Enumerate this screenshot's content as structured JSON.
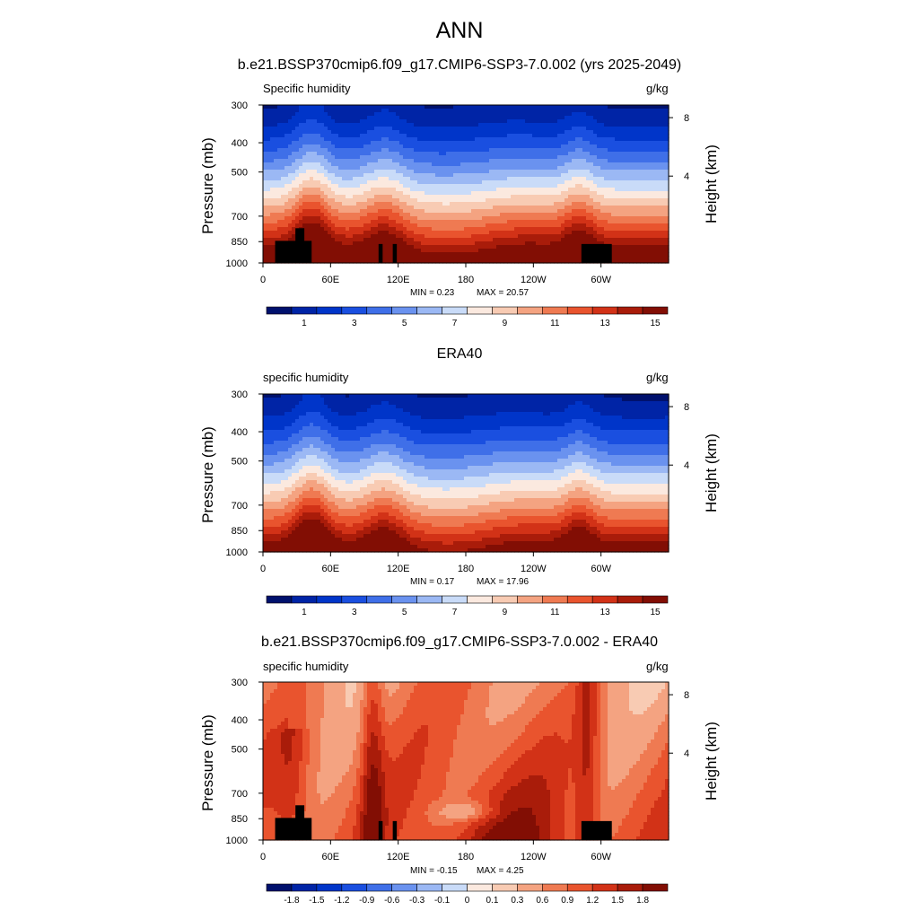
{
  "title": "ANN",
  "chart_data": [
    {
      "type": "heatmap",
      "title": "b.e21.BSSP370cmip6.f09_g17.CMIP6-SSP3-7.0.002 (yrs 2025-2049)",
      "variable": "Specific humidity",
      "units": "g/kg",
      "ylabel": "Pressure (mb)",
      "ylabel_right": "Height (km)",
      "xticks": [
        "0",
        "60E",
        "120E",
        "180",
        "120W",
        "60W"
      ],
      "yticks": [
        "300",
        "400",
        "500",
        "700",
        "850",
        "1000"
      ],
      "yticks_right": [
        "8",
        "4"
      ],
      "min_label": "MIN =   0.23",
      "max_label": "MAX =  20.57",
      "colorbar_labels": [
        "1",
        "3",
        "5",
        "7",
        "9",
        "11",
        "13",
        "15"
      ],
      "colormap": [
        "#00116d",
        "#0024a6",
        "#0035c9",
        "#1a4fe0",
        "#3f6fe8",
        "#6a92ef",
        "#9bb8f4",
        "#c9dbf8",
        "#fbe9df",
        "#f8cbb3",
        "#f4a381",
        "#ef7a52",
        "#e9542e",
        "#d23217",
        "#a91c0a",
        "#820e04"
      ],
      "min": 0.23,
      "max": 20.57
    },
    {
      "type": "heatmap",
      "title": "ERA40",
      "variable": "specific humidity",
      "units": "g/kg",
      "ylabel": "Pressure (mb)",
      "ylabel_right": "Height (km)",
      "xticks": [
        "0",
        "60E",
        "120E",
        "180",
        "120W",
        "60W"
      ],
      "yticks": [
        "300",
        "400",
        "500",
        "700",
        "850",
        "1000"
      ],
      "yticks_right": [
        "8",
        "4"
      ],
      "min_label": "MIN =   0.17",
      "max_label": "MAX =  17.96",
      "colorbar_labels": [
        "1",
        "3",
        "5",
        "7",
        "9",
        "11",
        "13",
        "15"
      ],
      "colormap": [
        "#00116d",
        "#0024a6",
        "#0035c9",
        "#1a4fe0",
        "#3f6fe8",
        "#6a92ef",
        "#9bb8f4",
        "#c9dbf8",
        "#fbe9df",
        "#f8cbb3",
        "#f4a381",
        "#ef7a52",
        "#e9542e",
        "#d23217",
        "#a91c0a",
        "#820e04"
      ],
      "min": 0.17,
      "max": 17.96
    },
    {
      "type": "heatmap",
      "title": "b.e21.BSSP370cmip6.f09_g17.CMIP6-SSP3-7.0.002 - ERA40",
      "variable": "specific humidity",
      "units": "g/kg",
      "ylabel": "Pressure (mb)",
      "ylabel_right": "Height (km)",
      "xticks": [
        "0",
        "60E",
        "120E",
        "180",
        "120W",
        "60W"
      ],
      "yticks": [
        "300",
        "400",
        "500",
        "700",
        "850",
        "1000"
      ],
      "yticks_right": [
        "8",
        "4"
      ],
      "min_label": "MIN =  -0.15",
      "max_label": "MAX =   4.25",
      "colorbar_labels": [
        "-1.8",
        "-1.5",
        "-1.2",
        "-0.9",
        "-0.6",
        "-0.3",
        "-0.1",
        "0",
        "0.1",
        "0.3",
        "0.6",
        "0.9",
        "1.2",
        "1.5",
        "1.8"
      ],
      "colormap": [
        "#00116d",
        "#0024a6",
        "#0035c9",
        "#1a4fe0",
        "#3f6fe8",
        "#6a92ef",
        "#9bb8f4",
        "#c9dbf8",
        "#fbe9df",
        "#f8cbb3",
        "#f4a381",
        "#ef7a52",
        "#e9542e",
        "#d23217",
        "#a91c0a",
        "#820e04"
      ],
      "min": -0.15,
      "max": 4.25
    }
  ]
}
